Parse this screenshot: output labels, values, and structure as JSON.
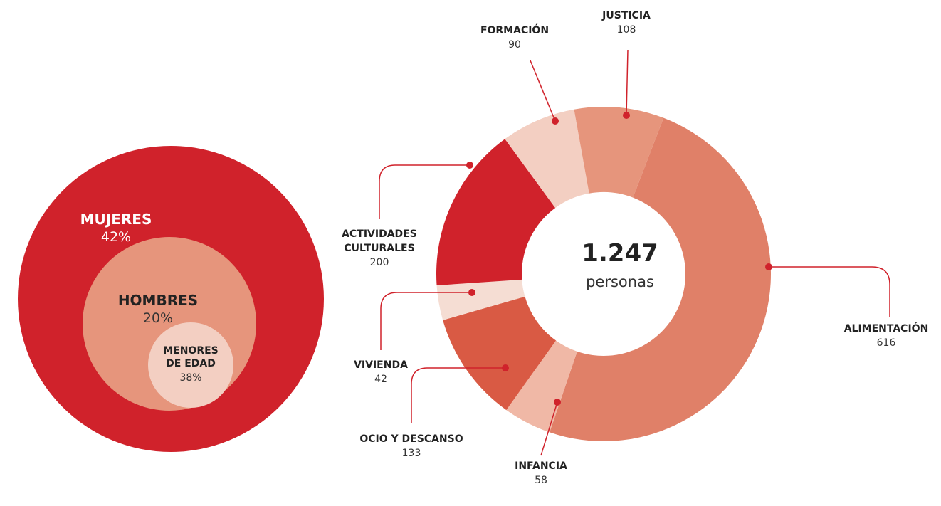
{
  "chart_data": [
    {
      "type": "circles",
      "categories": [
        "MUJERES",
        "HOMBRES",
        "MENORES DE EDAD"
      ],
      "values": [
        42,
        20,
        38
      ],
      "value_labels": [
        "42%",
        "20%",
        "38%"
      ],
      "colors": [
        "#d0222b",
        "#e6957c",
        "#f3cfc2"
      ]
    },
    {
      "type": "donut",
      "center_label": "1.247",
      "center_sublabel": "personas",
      "categories": [
        "ALIMENTACIÓN",
        "INFANCIA",
        "OCIO Y DESCANSO",
        "VIVIENDA",
        "ACTIVIDADES CULTURALES",
        "FORMACIÓN",
        "JUSTICIA"
      ],
      "values": [
        616,
        58,
        133,
        42,
        200,
        90,
        108
      ],
      "colors": [
        "#e08068",
        "#f0b8a6",
        "#d95a44",
        "#f5ddd3",
        "#d0222b",
        "#f3cfc2",
        "#e6957c"
      ]
    }
  ]
}
